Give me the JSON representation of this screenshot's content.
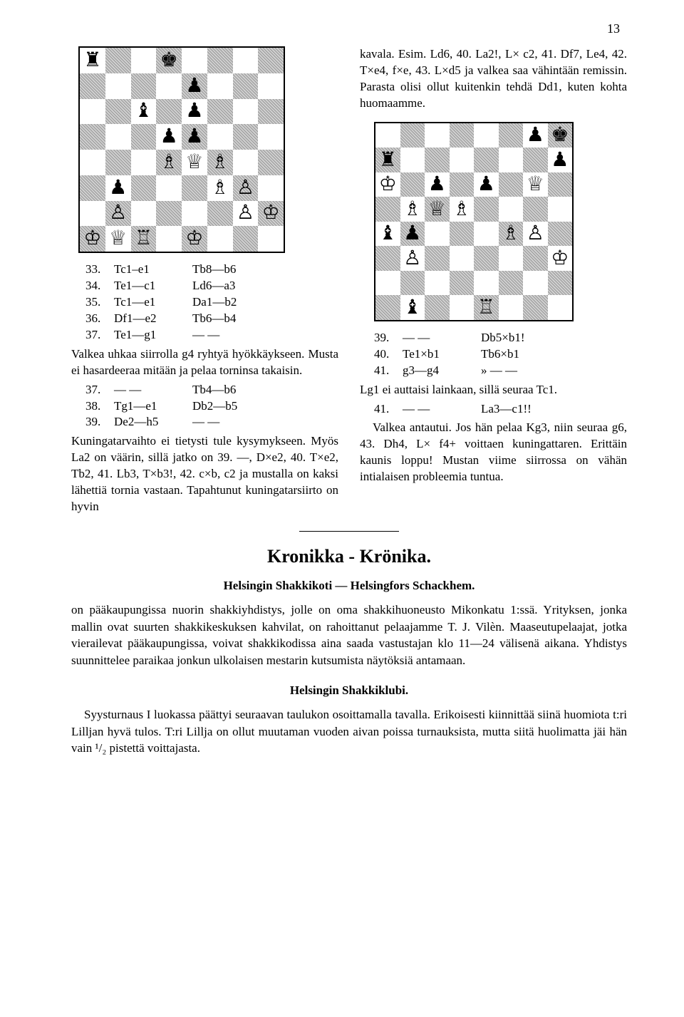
{
  "page_number": "13",
  "board1": {
    "pieces": {
      "a8": "♜",
      "d8": "♚",
      "e7": "♟",
      "c6": "♝",
      "e6": "♟",
      "d5": "♟",
      "e5": "♟",
      "d4": "♗",
      "e4": "♕",
      "f4": "♗",
      "b3": "♟",
      "f3": "♗",
      "g3": "♙",
      "b2": "♙",
      "g2": "♙",
      "h2": "♔",
      "a1": "♔",
      "b1": "♕",
      "c1": "♖",
      "e1": "♔"
    }
  },
  "board2": {
    "pieces": {
      "g8": "♟",
      "h8": "♚",
      "a7": "♜",
      "h7": "♟",
      "a6": "♔",
      "c6": "♟",
      "e6": "♟",
      "g6": "♕",
      "b5": "♗",
      "c5": "♕",
      "d5": "♗",
      "a4": "♝",
      "b4": "♟",
      "f4": "♗",
      "g4": "♙",
      "b3": "♙",
      "h3": "♔",
      "b1": "♝",
      "e1": "♖"
    }
  },
  "moves1": [
    {
      "n": "33.",
      "w": "Tc1–e1",
      "b": "Tb8—b6"
    },
    {
      "n": "34.",
      "w": "Te1—c1",
      "b": "Ld6—a3"
    },
    {
      "n": "35.",
      "w": "Tc1—e1",
      "b": "Da1—b2"
    },
    {
      "n": "36.",
      "w": "Df1—e2",
      "b": "Tb6—b4"
    },
    {
      "n": "37.",
      "w": "Te1—g1",
      "b": "— —"
    }
  ],
  "text1": "Valkea uhkaa siirrolla g4 ryhtyä hyökkäykseen. Musta ei hasardeeraa mitään ja pelaa torninsa takaisin.",
  "moves2": [
    {
      "n": "37.",
      "w": "— —",
      "b": "Tb4—b6"
    },
    {
      "n": "38.",
      "w": "Tg1—e1",
      "b": "Db2—b5"
    },
    {
      "n": "39.",
      "w": "De2—h5",
      "b": "— —"
    }
  ],
  "text2": "Kuningatarvaihto ei tietysti tule kysymykseen. Myös La2 on väärin, sillä jatko on 39. —, D×e2, 40. T×e2, Tb2, 41. Lb3, T×b3!, 42. c×b, c2 ja mustalla on kaksi lähettiä tornia vastaan. Tapahtunut kuningatarsiirto on hyvin",
  "text_right1": "kavala. Esim. Ld6, 40. La2!, L× c2, 41. Df7, Le4, 42. T×e4, f×e, 43. L×d5 ja valkea saa vähintään remissin. Parasta olisi ollut kuitenkin tehdä Dd1, kuten kohta huomaamme.",
  "moves3": [
    {
      "n": "39.",
      "w": "— —",
      "b": "Db5×b1!"
    },
    {
      "n": "40.",
      "w": "Te1×b1",
      "b": "Tb6×b1"
    },
    {
      "n": "41.",
      "w": "g3—g4",
      "b": "» — —"
    }
  ],
  "text_right2": "Lg1 ei auttaisi lainkaan, sillä seuraa Tc1.",
  "moves4": [
    {
      "n": "41.",
      "w": "— —",
      "b": "La3—c1!!"
    }
  ],
  "text_right3": "Valkea antautui. Jos hän pelaa Kg3, niin seuraa g6, 43. Dh4, L× f4+ voittaen kuningattaren. Erittäin kaunis loppu! Mustan viime siirrossa on vähän intialaisen probleemia tuntua.",
  "section_title": "Kronikka - Krönika.",
  "sub1": "Helsingin Shakkikoti — Helsingfors Schackhem.",
  "body1": "on pääkaupungissa nuorin shakkiyhdistys, jolle on oma shakkihuoneusto Mikonkatu 1:ssä. Yrityksen, jonka mallin ovat suurten shakkikeskuksen kahvilat, on rahoittanut pelaajamme T. J. Vilèn. Maaseutupelaajat, jotka vierailevat pääkaupungissa, voivat shakkikodissa aina saada vastustajan klo 11—24 välisenä aikana. Yhdistys suunnittelee paraikaa jonkun ulkolaisen mestarin kutsumista näytöksiä antamaan.",
  "sub2": "Helsingin Shakkiklubi.",
  "body2": "Syysturnaus I luokassa päättyi seuraavan taulukon osoittamalla tavalla. Erikoisesti kiinnittää siinä huomiota t:ri Lilljan hyvä tulos. T:ri Lillja on ollut muutaman vuoden aivan poissa turnauksista, mutta siitä huolimatta jäi hän vain ¹/₂ pistettä voittajasta."
}
